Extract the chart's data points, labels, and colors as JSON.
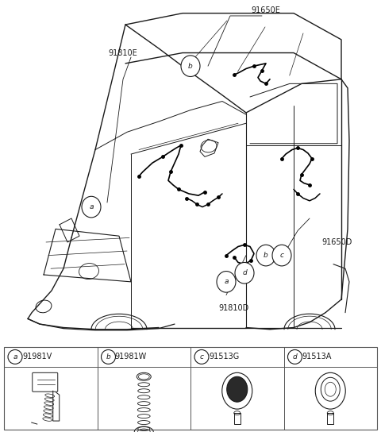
{
  "bg_color": "#ffffff",
  "lc": "#1a1a1a",
  "parts": [
    {
      "label": "a",
      "part_num": "91981V"
    },
    {
      "label": "b",
      "part_num": "91981W"
    },
    {
      "label": "c",
      "part_num": "91513G"
    },
    {
      "label": "d",
      "part_num": "91513A"
    }
  ],
  "callout_label_91650E": "91650E",
  "callout_label_91810E": "91810E",
  "callout_label_91650D": "91650D",
  "callout_label_91810D": "91810D"
}
